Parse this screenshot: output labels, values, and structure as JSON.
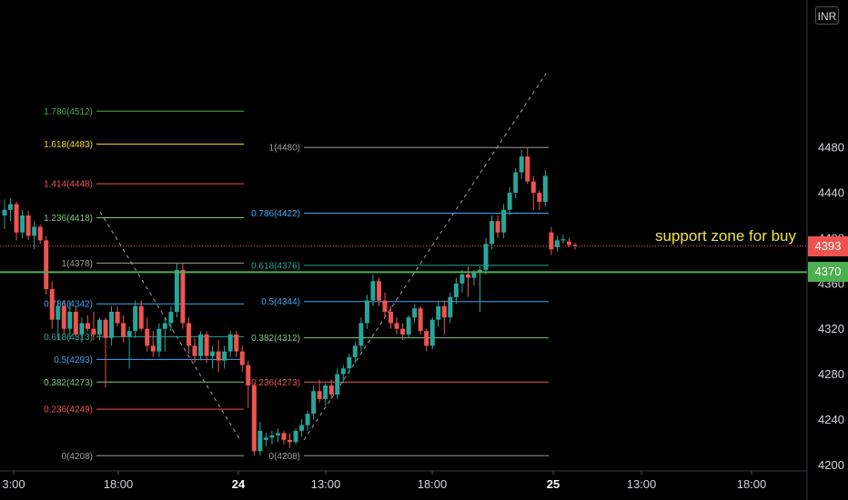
{
  "chart_data": {
    "type": "candlestick",
    "title": "",
    "currency": "INR",
    "y_axis": {
      "ticks": [
        4200,
        4240,
        4280,
        4320,
        4360,
        4400,
        4440,
        4480
      ],
      "range": [
        4190,
        4530
      ]
    },
    "x_axis": {
      "ticks": [
        "3:00",
        "18:00",
        "24",
        "13:00",
        "18:00",
        "25",
        "13:00",
        "18:00"
      ]
    },
    "last_price": {
      "value": "4393",
      "color": "#ef5350"
    },
    "support_level": {
      "value": 4370,
      "label": "4370",
      "color": "#4caf50"
    },
    "annotation": "support zone for buy",
    "fib_retracements": [
      {
        "levels": [
          {
            "label": "1.786(4512)",
            "price": 4512,
            "color": "#4caf50"
          },
          {
            "label": "1.618(4483)",
            "price": 4483,
            "color": "#f9d71c"
          },
          {
            "label": "1.414(4448)",
            "price": 4448,
            "color": "#ef5350"
          },
          {
            "label": "1.236(4418)",
            "price": 4418,
            "color": "#81c784"
          },
          {
            "label": "1(4378)",
            "price": 4378,
            "color": "#9e9e9e"
          },
          {
            "label": "0.786(4342)",
            "price": 4342,
            "color": "#42a5f5"
          },
          {
            "label": "0.618(4313)",
            "price": 4313,
            "color": "#26a69a"
          },
          {
            "label": "0.5(4293)",
            "price": 4293,
            "color": "#42a5f5"
          },
          {
            "label": "0.382(4273)",
            "price": 4273,
            "color": "#81c784"
          },
          {
            "label": "0.236(4249)",
            "price": 4249,
            "color": "#ef5350"
          },
          {
            "label": "0(4208)",
            "price": 4208,
            "color": "#9e9e9e"
          }
        ]
      },
      {
        "levels": [
          {
            "label": "1(4480)",
            "price": 4480,
            "color": "#9e9e9e"
          },
          {
            "label": "0.786(4422)",
            "price": 4422,
            "color": "#42a5f5"
          },
          {
            "label": "0.618(4376)",
            "price": 4376,
            "color": "#26a69a"
          },
          {
            "label": "0.5(4344)",
            "price": 4344,
            "color": "#42a5f5"
          },
          {
            "label": "0.382(4312)",
            "price": 4312,
            "color": "#81c784"
          },
          {
            "label": "0.236(4273)",
            "price": 4273,
            "color": "#ef5350"
          },
          {
            "label": "0(4208)",
            "price": 4208,
            "color": "#9e9e9e"
          }
        ]
      }
    ],
    "candles": [
      {
        "o": 4420,
        "h": 4434,
        "l": 4408,
        "c": 4425
      },
      {
        "o": 4425,
        "h": 4435,
        "l": 4415,
        "c": 4430
      },
      {
        "o": 4430,
        "h": 4432,
        "l": 4398,
        "c": 4405
      },
      {
        "o": 4405,
        "h": 4425,
        "l": 4400,
        "c": 4420
      },
      {
        "o": 4420,
        "h": 4424,
        "l": 4398,
        "c": 4402
      },
      {
        "o": 4402,
        "h": 4415,
        "l": 4390,
        "c": 4410
      },
      {
        "o": 4410,
        "h": 4412,
        "l": 4395,
        "c": 4398
      },
      {
        "o": 4398,
        "h": 4402,
        "l": 4350,
        "c": 4355
      },
      {
        "o": 4355,
        "h": 4362,
        "l": 4320,
        "c": 4328
      },
      {
        "o": 4328,
        "h": 4345,
        "l": 4310,
        "c": 4340
      },
      {
        "o": 4340,
        "h": 4345,
        "l": 4315,
        "c": 4320
      },
      {
        "o": 4320,
        "h": 4345,
        "l": 4310,
        "c": 4335
      },
      {
        "o": 4335,
        "h": 4340,
        "l": 4312,
        "c": 4315
      },
      {
        "o": 4315,
        "h": 4330,
        "l": 4308,
        "c": 4325
      },
      {
        "o": 4325,
        "h": 4332,
        "l": 4318,
        "c": 4320
      },
      {
        "o": 4320,
        "h": 4335,
        "l": 4310,
        "c": 4315
      },
      {
        "o": 4315,
        "h": 4330,
        "l": 4310,
        "c": 4328
      },
      {
        "o": 4328,
        "h": 4330,
        "l": 4268,
        "c": 4312
      },
      {
        "o": 4312,
        "h": 4340,
        "l": 4305,
        "c": 4335
      },
      {
        "o": 4335,
        "h": 4340,
        "l": 4322,
        "c": 4325
      },
      {
        "o": 4325,
        "h": 4332,
        "l": 4308,
        "c": 4313
      },
      {
        "o": 4313,
        "h": 4322,
        "l": 4285,
        "c": 4318
      },
      {
        "o": 4318,
        "h": 4345,
        "l": 4312,
        "c": 4340
      },
      {
        "o": 4340,
        "h": 4345,
        "l": 4318,
        "c": 4320
      },
      {
        "o": 4320,
        "h": 4330,
        "l": 4300,
        "c": 4305
      },
      {
        "o": 4305,
        "h": 4318,
        "l": 4295,
        "c": 4300
      },
      {
        "o": 4300,
        "h": 4325,
        "l": 4295,
        "c": 4320
      },
      {
        "o": 4320,
        "h": 4330,
        "l": 4300,
        "c": 4325
      },
      {
        "o": 4325,
        "h": 4340,
        "l": 4318,
        "c": 4335
      },
      {
        "o": 4335,
        "h": 4378,
        "l": 4330,
        "c": 4372
      },
      {
        "o": 4372,
        "h": 4378,
        "l": 4320,
        "c": 4325
      },
      {
        "o": 4325,
        "h": 4330,
        "l": 4298,
        "c": 4305
      },
      {
        "o": 4305,
        "h": 4312,
        "l": 4290,
        "c": 4296
      },
      {
        "o": 4296,
        "h": 4318,
        "l": 4292,
        "c": 4315
      },
      {
        "o": 4315,
        "h": 4318,
        "l": 4290,
        "c": 4296
      },
      {
        "o": 4296,
        "h": 4305,
        "l": 4285,
        "c": 4300
      },
      {
        "o": 4300,
        "h": 4310,
        "l": 4282,
        "c": 4292
      },
      {
        "o": 4292,
        "h": 4305,
        "l": 4285,
        "c": 4300
      },
      {
        "o": 4300,
        "h": 4318,
        "l": 4295,
        "c": 4315
      },
      {
        "o": 4315,
        "h": 4318,
        "l": 4295,
        "c": 4300
      },
      {
        "o": 4300,
        "h": 4305,
        "l": 4282,
        "c": 4288
      },
      {
        "o": 4288,
        "h": 4292,
        "l": 4250,
        "c": 4270
      },
      {
        "o": 4270,
        "h": 4272,
        "l": 4208,
        "c": 4212
      },
      {
        "o": 4212,
        "h": 4238,
        "l": 4208,
        "c": 4230
      },
      {
        "o": 4222,
        "h": 4228,
        "l": 4216,
        "c": 4224
      },
      {
        "o": 4224,
        "h": 4230,
        "l": 4218,
        "c": 4226
      },
      {
        "o": 4226,
        "h": 4232,
        "l": 4220,
        "c": 4228
      },
      {
        "o": 4228,
        "h": 4230,
        "l": 4218,
        "c": 4222
      },
      {
        "o": 4222,
        "h": 4228,
        "l": 4215,
        "c": 4220
      },
      {
        "o": 4220,
        "h": 4232,
        "l": 4218,
        "c": 4230
      },
      {
        "o": 4230,
        "h": 4240,
        "l": 4225,
        "c": 4235
      },
      {
        "o": 4235,
        "h": 4248,
        "l": 4230,
        "c": 4245
      },
      {
        "o": 4245,
        "h": 4270,
        "l": 4240,
        "c": 4265
      },
      {
        "o": 4265,
        "h": 4275,
        "l": 4255,
        "c": 4258
      },
      {
        "o": 4258,
        "h": 4272,
        "l": 4252,
        "c": 4270
      },
      {
        "o": 4270,
        "h": 4275,
        "l": 4258,
        "c": 4262
      },
      {
        "o": 4262,
        "h": 4285,
        "l": 4258,
        "c": 4280
      },
      {
        "o": 4280,
        "h": 4288,
        "l": 4272,
        "c": 4285
      },
      {
        "o": 4285,
        "h": 4298,
        "l": 4280,
        "c": 4295
      },
      {
        "o": 4295,
        "h": 4308,
        "l": 4290,
        "c": 4305
      },
      {
        "o": 4305,
        "h": 4330,
        "l": 4300,
        "c": 4325
      },
      {
        "o": 4325,
        "h": 4350,
        "l": 4320,
        "c": 4345
      },
      {
        "o": 4345,
        "h": 4368,
        "l": 4340,
        "c": 4362
      },
      {
        "o": 4362,
        "h": 4365,
        "l": 4340,
        "c": 4345
      },
      {
        "o": 4345,
        "h": 4352,
        "l": 4330,
        "c": 4335
      },
      {
        "o": 4335,
        "h": 4340,
        "l": 4320,
        "c": 4325
      },
      {
        "o": 4325,
        "h": 4330,
        "l": 4315,
        "c": 4320
      },
      {
        "o": 4320,
        "h": 4325,
        "l": 4310,
        "c": 4315
      },
      {
        "o": 4315,
        "h": 4332,
        "l": 4312,
        "c": 4330
      },
      {
        "o": 4330,
        "h": 4342,
        "l": 4325,
        "c": 4338
      },
      {
        "o": 4338,
        "h": 4340,
        "l": 4315,
        "c": 4318
      },
      {
        "o": 4318,
        "h": 4320,
        "l": 4300,
        "c": 4305
      },
      {
        "o": 4305,
        "h": 4330,
        "l": 4302,
        "c": 4328
      },
      {
        "o": 4328,
        "h": 4345,
        "l": 4322,
        "c": 4340
      },
      {
        "o": 4340,
        "h": 4345,
        "l": 4315,
        "c": 4330
      },
      {
        "o": 4330,
        "h": 4352,
        "l": 4325,
        "c": 4348
      },
      {
        "o": 4348,
        "h": 4365,
        "l": 4342,
        "c": 4360
      },
      {
        "o": 4360,
        "h": 4372,
        "l": 4352,
        "c": 4368
      },
      {
        "o": 4368,
        "h": 4375,
        "l": 4348,
        "c": 4365
      },
      {
        "o": 4365,
        "h": 4372,
        "l": 4358,
        "c": 4370
      },
      {
        "o": 4370,
        "h": 4375,
        "l": 4335,
        "c": 4372
      },
      {
        "o": 4372,
        "h": 4400,
        "l": 4368,
        "c": 4395
      },
      {
        "o": 4395,
        "h": 4420,
        "l": 4390,
        "c": 4415
      },
      {
        "o": 4415,
        "h": 4420,
        "l": 4400,
        "c": 4405
      },
      {
        "o": 4405,
        "h": 4430,
        "l": 4400,
        "c": 4425
      },
      {
        "o": 4425,
        "h": 4445,
        "l": 4420,
        "c": 4440
      },
      {
        "o": 4440,
        "h": 4462,
        "l": 4435,
        "c": 4458
      },
      {
        "o": 4458,
        "h": 4478,
        "l": 4452,
        "c": 4472
      },
      {
        "o": 4472,
        "h": 4480,
        "l": 4448,
        "c": 4450
      },
      {
        "o": 4450,
        "h": 4455,
        "l": 4425,
        "c": 4440
      },
      {
        "o": 4440,
        "h": 4442,
        "l": 4425,
        "c": 4432
      },
      {
        "o": 4432,
        "h": 4460,
        "l": 4428,
        "c": 4455
      },
      {
        "o": 4405,
        "h": 4410,
        "l": 4385,
        "c": 4390
      },
      {
        "o": 4392,
        "h": 4402,
        "l": 4388,
        "c": 4398
      },
      {
        "o": 4398,
        "h": 4403,
        "l": 4395,
        "c": 4399
      },
      {
        "o": 4397,
        "h": 4400,
        "l": 4392,
        "c": 4394
      },
      {
        "o": 4394,
        "h": 4396,
        "l": 4390,
        "c": 4393
      }
    ]
  }
}
